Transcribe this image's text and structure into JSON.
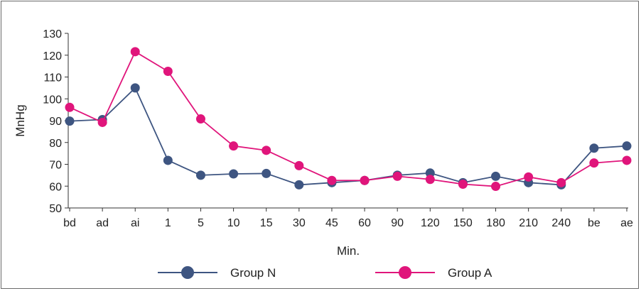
{
  "chart_data": {
    "type": "line",
    "title": "",
    "xlabel": "Min.",
    "ylabel": "MnHg",
    "ylim": [
      50,
      130
    ],
    "yticks": [
      50,
      60,
      70,
      80,
      90,
      100,
      110,
      120,
      130
    ],
    "categories": [
      "bd",
      "ad",
      "ai",
      "1",
      "5",
      "10",
      "15",
      "30",
      "45",
      "60",
      "90",
      "120",
      "150",
      "180",
      "210",
      "240",
      "be",
      "ae"
    ],
    "grid": false,
    "legend_position": "bottom",
    "series": [
      {
        "name": "Group N",
        "color": "#3e5581",
        "marker": "circle",
        "values": [
          89.8,
          90.5,
          105.0,
          71.8,
          65.0,
          65.6,
          65.8,
          60.6,
          61.6,
          62.6,
          65.0,
          66.0,
          61.6,
          64.5,
          61.6,
          60.6,
          77.4,
          78.4
        ]
      },
      {
        "name": "Group A",
        "color": "#e0157b",
        "marker": "circle",
        "values": [
          96.1,
          89.2,
          121.6,
          112.6,
          90.8,
          78.4,
          76.4,
          69.4,
          62.6,
          62.6,
          64.5,
          63.1,
          60.9,
          59.9,
          64.2,
          61.6,
          70.6,
          71.8
        ]
      }
    ]
  }
}
